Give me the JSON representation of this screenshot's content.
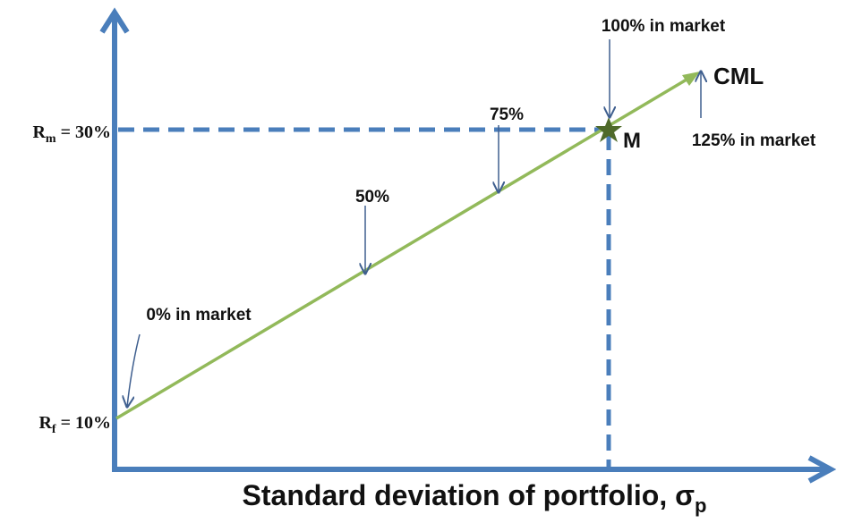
{
  "y_labels": [
    {
      "symbol": "R",
      "subscript": "m",
      "text": " = 30%"
    },
    {
      "symbol": "R",
      "subscript": "f",
      "text": " = 10%"
    }
  ],
  "x_axis_label": {
    "text": "Standard deviation of portfolio, σ",
    "subscript": "p"
  },
  "annotations": {
    "line_label": "CML",
    "market_point": "M",
    "pct_100": "100%  in market",
    "pct_75": "75%",
    "pct_50": "50%",
    "pct_0": "0%  in market",
    "pct_125": "125%  in market"
  }
}
